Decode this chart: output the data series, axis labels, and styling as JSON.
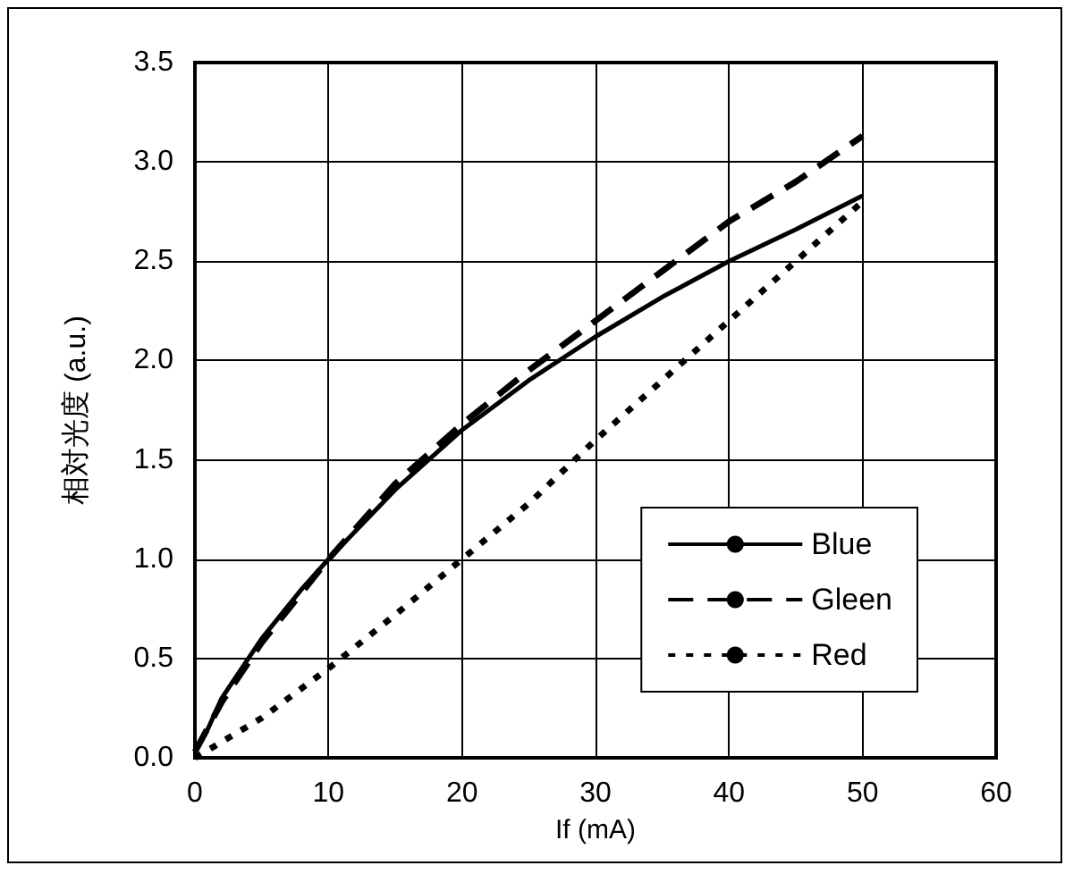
{
  "chart_data": {
    "type": "line",
    "xlabel": "If (mA)",
    "ylabel": "相対光度 (a.u.)",
    "xlim": [
      0,
      60
    ],
    "xticks": [
      0,
      10,
      20,
      30,
      40,
      50,
      60
    ],
    "ylim": [
      0,
      3.5
    ],
    "yticks": [
      {
        "value": 0,
        "label": "0.0"
      },
      {
        "value": 0.5,
        "label": "0.5"
      },
      {
        "value": 1,
        "label": "1.0"
      },
      {
        "value": 1.5,
        "label": "1.5"
      },
      {
        "value": 2,
        "label": "2.0"
      },
      {
        "value": 2.5,
        "label": "2.5"
      },
      {
        "value": 3,
        "label": "3.0"
      },
      {
        "value": 3.5,
        "label": "3.5"
      }
    ],
    "grid": true,
    "legend": "bottom right",
    "marker": "none",
    "series": [
      {
        "name": "Blue",
        "color": "#000000",
        "line_style": "solid",
        "x": [
          0,
          1,
          2,
          5,
          8,
          10,
          15,
          20,
          25,
          30,
          35,
          40,
          45,
          50
        ],
        "values": [
          0.03,
          0.15,
          0.3,
          0.6,
          0.85,
          1.0,
          1.35,
          1.65,
          1.9,
          2.12,
          2.32,
          2.5,
          2.66,
          2.83
        ]
      },
      {
        "name": "Gleen",
        "color": "#000000",
        "line_style": "dashed",
        "x": [
          0,
          2,
          5,
          10,
          15,
          20,
          25,
          30,
          35,
          40,
          45,
          50
        ],
        "values": [
          0.03,
          0.28,
          0.58,
          1.0,
          1.38,
          1.68,
          1.95,
          2.2,
          2.45,
          2.7,
          2.9,
          3.13
        ]
      },
      {
        "name": "Red",
        "color": "#000000",
        "line_style": "dotted",
        "x": [
          0,
          5,
          10,
          15,
          20,
          25,
          30,
          35,
          40,
          45,
          50
        ],
        "values": [
          0.0,
          0.2,
          0.45,
          0.72,
          1.0,
          1.28,
          1.6,
          1.9,
          2.2,
          2.5,
          2.8
        ]
      }
    ]
  }
}
